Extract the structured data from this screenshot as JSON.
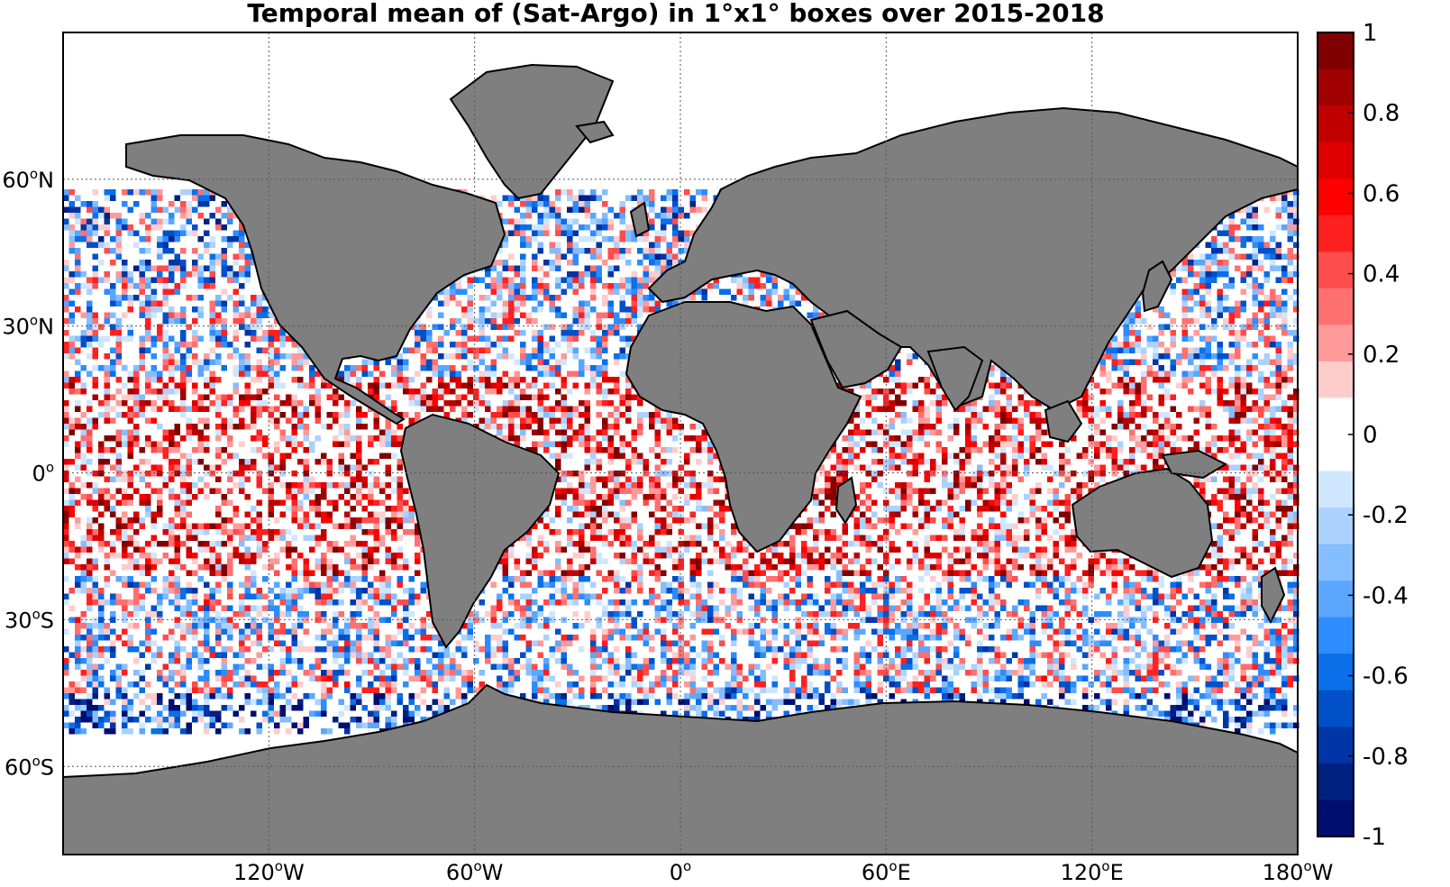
{
  "title": "Temporal mean of (Sat-Argo) in 1°x1° boxes over 2015-2018",
  "map": {
    "lon_range": [
      -180,
      180
    ],
    "lat_range": [
      -78,
      90
    ],
    "lon_ticks": [
      {
        "lon": -120,
        "num": "120",
        "hem": "W"
      },
      {
        "lon": -60,
        "num": "60",
        "hem": "W"
      },
      {
        "lon": 0,
        "num": "0",
        "hem": ""
      },
      {
        "lon": 60,
        "num": "60",
        "hem": "E"
      },
      {
        "lon": 120,
        "num": "120",
        "hem": "E"
      },
      {
        "lon": 180,
        "num": "180",
        "hem": "W"
      }
    ],
    "lat_ticks": [
      {
        "lat": 60,
        "num": "60",
        "hem": "N"
      },
      {
        "lat": 30,
        "num": "30",
        "hem": "N"
      },
      {
        "lat": 0,
        "num": "0",
        "hem": ""
      },
      {
        "lat": -30,
        "num": "30",
        "hem": "S"
      },
      {
        "lat": -60,
        "num": "60",
        "hem": "S"
      }
    ],
    "land_color": "#7f7f7f",
    "no_data_color": "#ffffff",
    "grid": "dotted"
  },
  "colorbar": {
    "range": [
      -1,
      1
    ],
    "labels": [
      "1",
      "0.8",
      "0.6",
      "0.4",
      "0.2",
      "0",
      "-0.2",
      "-0.4",
      "-0.6",
      "-0.8",
      "-1"
    ],
    "colors_top_to_bottom": [
      "#800000",
      "#a00000",
      "#c00000",
      "#dd0000",
      "#ff0000",
      "#ff2020",
      "#ff4d4d",
      "#ff7070",
      "#ff9a9a",
      "#ffcccc",
      "#ffffff",
      "#ffffff",
      "#cfe6ff",
      "#aad1ff",
      "#86bdff",
      "#5ba6ff",
      "#2d8cff",
      "#0a6fe8",
      "#0050c8",
      "#0035a5",
      "#002080",
      "#000e70"
    ]
  }
}
